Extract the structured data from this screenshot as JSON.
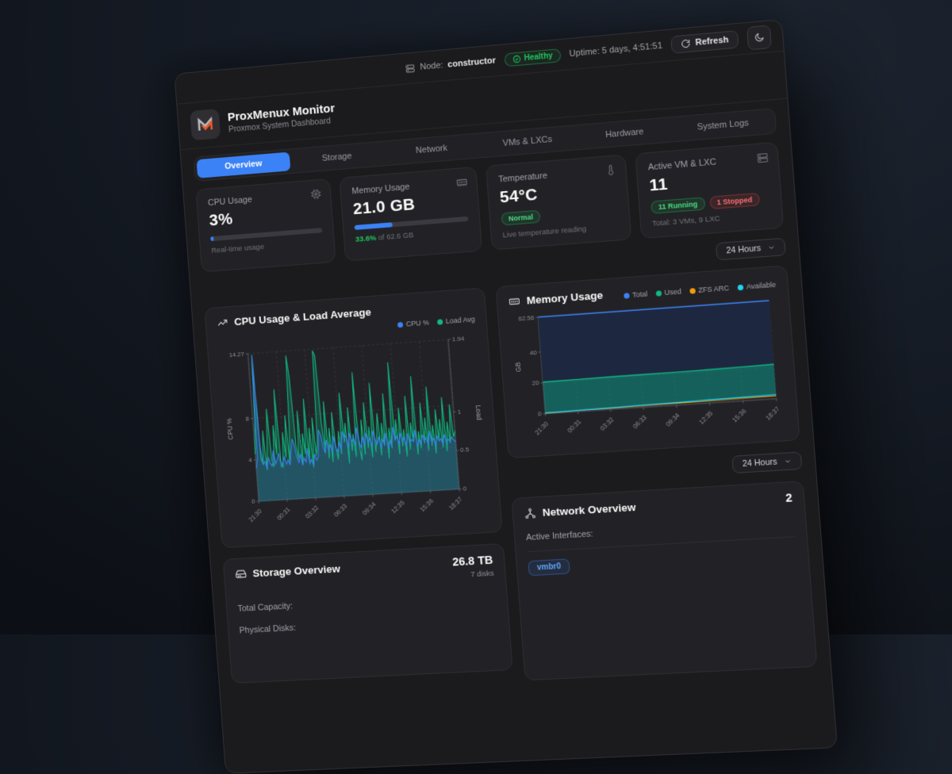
{
  "topbar": {
    "node_label": "Node:",
    "node_value": "constructor",
    "health_label": "Healthy",
    "uptime": "Uptime: 5 days, 4:51:51",
    "refresh_label": "Refresh"
  },
  "header": {
    "title": "ProxMenux Monitor",
    "subtitle": "Proxmox System Dashboard"
  },
  "tabs": [
    {
      "label": "Overview",
      "active": true
    },
    {
      "label": "Storage",
      "active": false
    },
    {
      "label": "Network",
      "active": false
    },
    {
      "label": "VMs & LXCs",
      "active": false
    },
    {
      "label": "Hardware",
      "active": false
    },
    {
      "label": "System Logs",
      "active": false
    }
  ],
  "stats": {
    "cpu": {
      "title": "CPU Usage",
      "value": "3%",
      "percent": 3,
      "sub": "Real-time usage"
    },
    "memory": {
      "title": "Memory Usage",
      "value": "21.0 GB",
      "percent": 33.6,
      "sub_highlight": "33.6%",
      "sub_rest": " of 62.6 GB"
    },
    "temperature": {
      "title": "Temperature",
      "value": "54°C",
      "badge": "Normal",
      "sub": "Live temperature reading"
    },
    "vms": {
      "title": "Active VM & LXC",
      "value": "11",
      "badge_running": "11 Running",
      "badge_stopped": "1 Stopped",
      "sub": "Total: 3 VMs, 9 LXC"
    }
  },
  "time_range": {
    "label": "24 Hours"
  },
  "time_range2": {
    "label": "24 Hours"
  },
  "storage": {
    "title": "Storage Overview",
    "capacity": "26.8 TB",
    "disks": "7 disks",
    "row1_label": "Total Capacity:",
    "row2_label": "Physical Disks:"
  },
  "network": {
    "title": "Network Overview",
    "count": "2",
    "interfaces_label": "Active Interfaces:",
    "interface_badge": "vmbr0"
  },
  "colors": {
    "accent_blue": "#3b82f6",
    "green": "#10b981",
    "orange": "#f59e0b",
    "cyan": "#22d3ee",
    "status_green": "#22c55e",
    "status_red": "#ef4444"
  },
  "chart_data": [
    {
      "type": "line",
      "title": "CPU Usage & Load Average",
      "legend_position": "top-right",
      "grid": "dashed",
      "x_ticks": [
        "21:30",
        "00:31",
        "03:32",
        "06:33",
        "09:34",
        "12:35",
        "15:36",
        "18:37"
      ],
      "left_axis": {
        "label": "CPU %",
        "ticks": [
          0,
          4,
          8,
          14.27
        ],
        "max": 14.27
      },
      "right_axis": {
        "label": "Load",
        "ticks": [
          0,
          0.5,
          1,
          1.94
        ],
        "max": 1.94
      },
      "series": [
        {
          "name": "CPU %",
          "axis": "left",
          "color": "#3b82f6",
          "fill": "rgba(59,130,246,0.22)",
          "values": [
            3.2,
            4.1,
            14.0,
            5.2,
            3.5,
            3.8,
            3.1,
            4.2,
            3.6,
            3.3,
            4.8,
            3.5,
            3.9,
            4.5,
            3.2,
            3.6,
            4.1,
            3.4,
            3.8,
            3.3,
            4.6,
            5.8,
            5.2,
            4.0,
            3.5,
            4.3,
            3.2,
            3.9,
            3.5,
            4.8,
            3.3,
            3.7,
            3.1,
            4.2,
            3.6,
            4.0,
            6.5,
            6.0,
            4.8,
            4.2,
            5.5,
            4.5,
            5.0,
            4.3,
            5.8,
            4.8,
            4.2,
            5.2,
            4.5,
            6.2,
            5.5,
            5.8,
            4.6,
            6.0,
            5.2,
            5.5,
            4.8,
            6.5,
            5.3,
            4.5,
            5.6,
            4.8,
            5.9,
            5.0,
            5.4,
            4.6,
            6.1,
            5.2,
            4.8,
            5.5,
            4.4,
            5.2,
            4.7,
            5.8,
            4.3,
            5.0,
            4.5,
            6.3,
            5.1,
            5.4,
            4.6,
            5.7,
            4.9,
            5.2,
            4.4,
            5.6,
            4.7,
            5.0,
            4.8,
            5.9,
            4.3,
            4.9,
            4.5,
            5.4,
            4.8,
            5.1,
            4.4,
            5.7,
            4.6,
            5.0,
            4.3,
            5.2,
            4.7,
            4.9,
            4.4,
            5.3,
            4.5,
            4.8,
            4.6,
            5.0,
            4.7,
            4.5
          ]
        },
        {
          "name": "Load Avg",
          "axis": "right",
          "color": "#10b981",
          "fill": "rgba(16,185,129,0.25)",
          "values": [
            0.62,
            1.05,
            1.92,
            0.55,
            0.48,
            0.92,
            0.4,
            0.75,
            1.2,
            0.52,
            0.44,
            0.98,
            0.6,
            1.45,
            0.5,
            0.42,
            0.88,
            0.55,
            1.1,
            0.48,
            0.95,
            1.88,
            1.6,
            0.7,
            0.52,
            1.15,
            0.45,
            0.85,
            0.58,
            1.3,
            0.48,
            0.92,
            0.4,
            1.05,
            0.55,
            0.75,
            1.92,
            1.85,
            0.95,
            0.6,
            1.25,
            0.5,
            0.9,
            0.45,
            1.1,
            0.65,
            0.48,
            0.85,
            0.55,
            1.35,
            0.7,
            0.95,
            0.42,
            1.15,
            0.58,
            0.8,
            0.5,
            1.6,
            0.65,
            0.45,
            0.98,
            0.52,
            1.2,
            0.6,
            0.88,
            0.48,
            1.45,
            0.55,
            0.75,
            1.05,
            0.5,
            0.92,
            0.62,
            1.3,
            0.45,
            0.85,
            0.58,
            1.7,
            0.68,
            0.95,
            0.5,
            1.1,
            0.6,
            0.82,
            0.46,
            1.25,
            0.55,
            0.9,
            0.65,
            1.5,
            0.48,
            0.78,
            0.56,
            1.15,
            0.62,
            0.95,
            0.52,
            1.35,
            0.58,
            0.85,
            0.48,
            1.05,
            0.65,
            0.92,
            0.55,
            1.2,
            0.5,
            0.88,
            0.6,
            1.1,
            0.68,
            0.75
          ]
        }
      ]
    },
    {
      "type": "area",
      "title": "Memory Usage",
      "ylabel": "GB",
      "grid": "dashed",
      "x_ticks": [
        "21:30",
        "00:31",
        "03:32",
        "06:33",
        "09:34",
        "12:35",
        "15:36",
        "18:37"
      ],
      "y_ticks": [
        0,
        20,
        40,
        62.56
      ],
      "ylim": [
        0,
        62.56
      ],
      "series": [
        {
          "name": "Total",
          "color": "#3b82f6",
          "values": [
            62.56,
            62.56,
            62.56,
            62.56,
            62.56,
            62.56,
            62.56,
            62.56
          ]
        },
        {
          "name": "Used",
          "color": "#10b981",
          "values": [
            20.5,
            20.7,
            20.9,
            21.0,
            21.1,
            21.3,
            21.6,
            21.9
          ]
        },
        {
          "name": "ZFS ARC",
          "color": "#f59e0b",
          "values": [
            0.4,
            0.6,
            0.8,
            1.0,
            1.2,
            1.4,
            1.6,
            1.8
          ]
        },
        {
          "name": "Available",
          "color": "#22d3ee",
          "values": [
            0.5,
            0.8,
            1.1,
            1.4,
            1.7,
            2.0,
            2.3,
            2.6
          ]
        }
      ]
    }
  ]
}
